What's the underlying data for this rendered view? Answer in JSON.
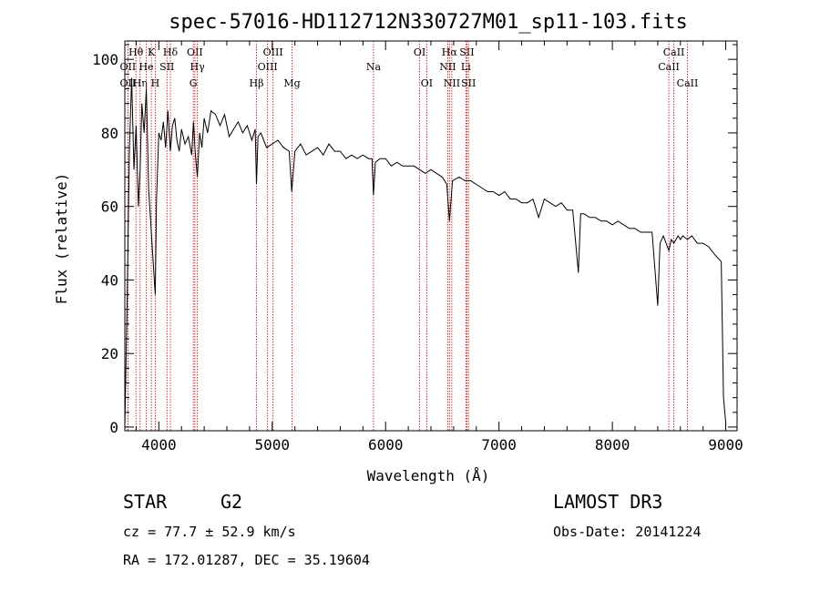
{
  "chart_data": {
    "type": "line",
    "title": "spec-57016-HD112712N330727M01_sp11-103.fits",
    "xlabel": "Wavelength (Å)",
    "ylabel": "Flux (relative)",
    "xlim": [
      3700,
      9100
    ],
    "ylim": [
      -1,
      105
    ],
    "x_ticks": [
      4000,
      5000,
      6000,
      7000,
      8000,
      9000
    ],
    "y_ticks": [
      0,
      20,
      40,
      60,
      80,
      100
    ],
    "series": [
      {
        "name": "spectrum",
        "x": [
          3700,
          3720,
          3740,
          3760,
          3780,
          3800,
          3820,
          3835,
          3850,
          3870,
          3890,
          3910,
          3930,
          3950,
          3968,
          3980,
          4000,
          4020,
          4040,
          4060,
          4080,
          4102,
          4120,
          4140,
          4160,
          4180,
          4200,
          4230,
          4260,
          4290,
          4305,
          4320,
          4340,
          4360,
          4380,
          4400,
          4430,
          4460,
          4500,
          4540,
          4580,
          4620,
          4660,
          4700,
          4740,
          4780,
          4820,
          4850,
          4861,
          4875,
          4900,
          4950,
          5000,
          5050,
          5100,
          5150,
          5172,
          5200,
          5250,
          5300,
          5350,
          5400,
          5450,
          5500,
          5550,
          5600,
          5650,
          5700,
          5750,
          5800,
          5850,
          5880,
          5893,
          5910,
          5950,
          6000,
          6050,
          6100,
          6150,
          6200,
          6250,
          6300,
          6350,
          6400,
          6450,
          6500,
          6540,
          6563,
          6590,
          6650,
          6700,
          6750,
          6800,
          6850,
          6900,
          6950,
          7000,
          7050,
          7100,
          7150,
          7200,
          7250,
          7300,
          7350,
          7400,
          7450,
          7500,
          7550,
          7600,
          7650,
          7700,
          7720,
          7750,
          7800,
          7850,
          7900,
          7950,
          8000,
          8050,
          8100,
          8150,
          8200,
          8250,
          8300,
          8350,
          8400,
          8420,
          8450,
          8498,
          8520,
          8542,
          8580,
          8600,
          8620,
          8662,
          8700,
          8750,
          8800,
          8850,
          8900,
          8930,
          8960,
          8980,
          9000
        ],
        "values": [
          0,
          34,
          75,
          95,
          70,
          82,
          60,
          70,
          88,
          80,
          92,
          65,
          55,
          45,
          36,
          62,
          80,
          78,
          83,
          76,
          86,
          75,
          82,
          84,
          78,
          75,
          81,
          77,
          79,
          74,
          83,
          75,
          68,
          80,
          76,
          84,
          80,
          86,
          85,
          82,
          85,
          79,
          81,
          83,
          80,
          82,
          78,
          81,
          66,
          79,
          80,
          76,
          77,
          78,
          76,
          75,
          64,
          75,
          77,
          74,
          75,
          76,
          74,
          77,
          75,
          75,
          73,
          74,
          73,
          74,
          73,
          73,
          63,
          72,
          73,
          73,
          71,
          72,
          71,
          71,
          71,
          70,
          69,
          70,
          69,
          68,
          66,
          56,
          67,
          68,
          67,
          67,
          66,
          65,
          64,
          64,
          63,
          64,
          62,
          62,
          61,
          61,
          62,
          57,
          62,
          61,
          60,
          61,
          59,
          59,
          42,
          58,
          58,
          57,
          57,
          56,
          56,
          55,
          56,
          55,
          54,
          54,
          53,
          53,
          53,
          33,
          50,
          52,
          48,
          51,
          50,
          52,
          51,
          52,
          51,
          52,
          50,
          50,
          49,
          47,
          46,
          45,
          8,
          1
        ]
      }
    ],
    "lines": [
      {
        "name": "Hθ",
        "x": 3798,
        "row": 1
      },
      {
        "name": "OII",
        "x": 3727,
        "row": 2
      },
      {
        "name": "OII",
        "x": 3727,
        "row": 3
      },
      {
        "name": "Hη",
        "x": 3835,
        "row": 3
      },
      {
        "name": "He",
        "x": 3889,
        "row": 2
      },
      {
        "name": "K",
        "x": 3934,
        "row": 1
      },
      {
        "name": "H",
        "x": 3969,
        "row": 3
      },
      {
        "name": "SII",
        "x": 4072,
        "row": 2
      },
      {
        "name": "Hδ",
        "x": 4102,
        "row": 1
      },
      {
        "name": "OII",
        "x": 4318,
        "row": 1
      },
      {
        "name": "Hγ",
        "x": 4340,
        "row": 2
      },
      {
        "name": "G",
        "x": 4304,
        "row": 3
      },
      {
        "name": "Hβ",
        "x": 4861,
        "row": 3
      },
      {
        "name": "OIII",
        "x": 5007,
        "row": 1
      },
      {
        "name": "OIII",
        "x": 4959,
        "row": 2
      },
      {
        "name": "Mg",
        "x": 5175,
        "row": 3
      },
      {
        "name": "Na",
        "x": 5893,
        "row": 2
      },
      {
        "name": "OI",
        "x": 6300,
        "row": 1
      },
      {
        "name": "OI",
        "x": 6363,
        "row": 3
      },
      {
        "name": "Hα",
        "x": 6563,
        "row": 1
      },
      {
        "name": "NII",
        "x": 6548,
        "row": 2
      },
      {
        "name": "NII",
        "x": 6584,
        "row": 3
      },
      {
        "name": "SII",
        "x": 6717,
        "row": 1
      },
      {
        "name": "Li",
        "x": 6708,
        "row": 2
      },
      {
        "name": "SII",
        "x": 6731,
        "row": 3
      },
      {
        "name": "CaII",
        "x": 8542,
        "row": 1
      },
      {
        "name": "CaII",
        "x": 8498,
        "row": 2
      },
      {
        "name": "CaII",
        "x": 8662,
        "row": 3
      }
    ],
    "line_color": "#cc0000",
    "spectrum_color": "#000000"
  },
  "info": {
    "object_class": "STAR",
    "subclass": "G2",
    "survey": "LAMOST DR3",
    "redshift": "cz = 77.7 ± 52.9 km/s",
    "obs_date": "Obs-Date: 20141224",
    "coords": "RA = 172.01287, DEC =  35.19604"
  }
}
